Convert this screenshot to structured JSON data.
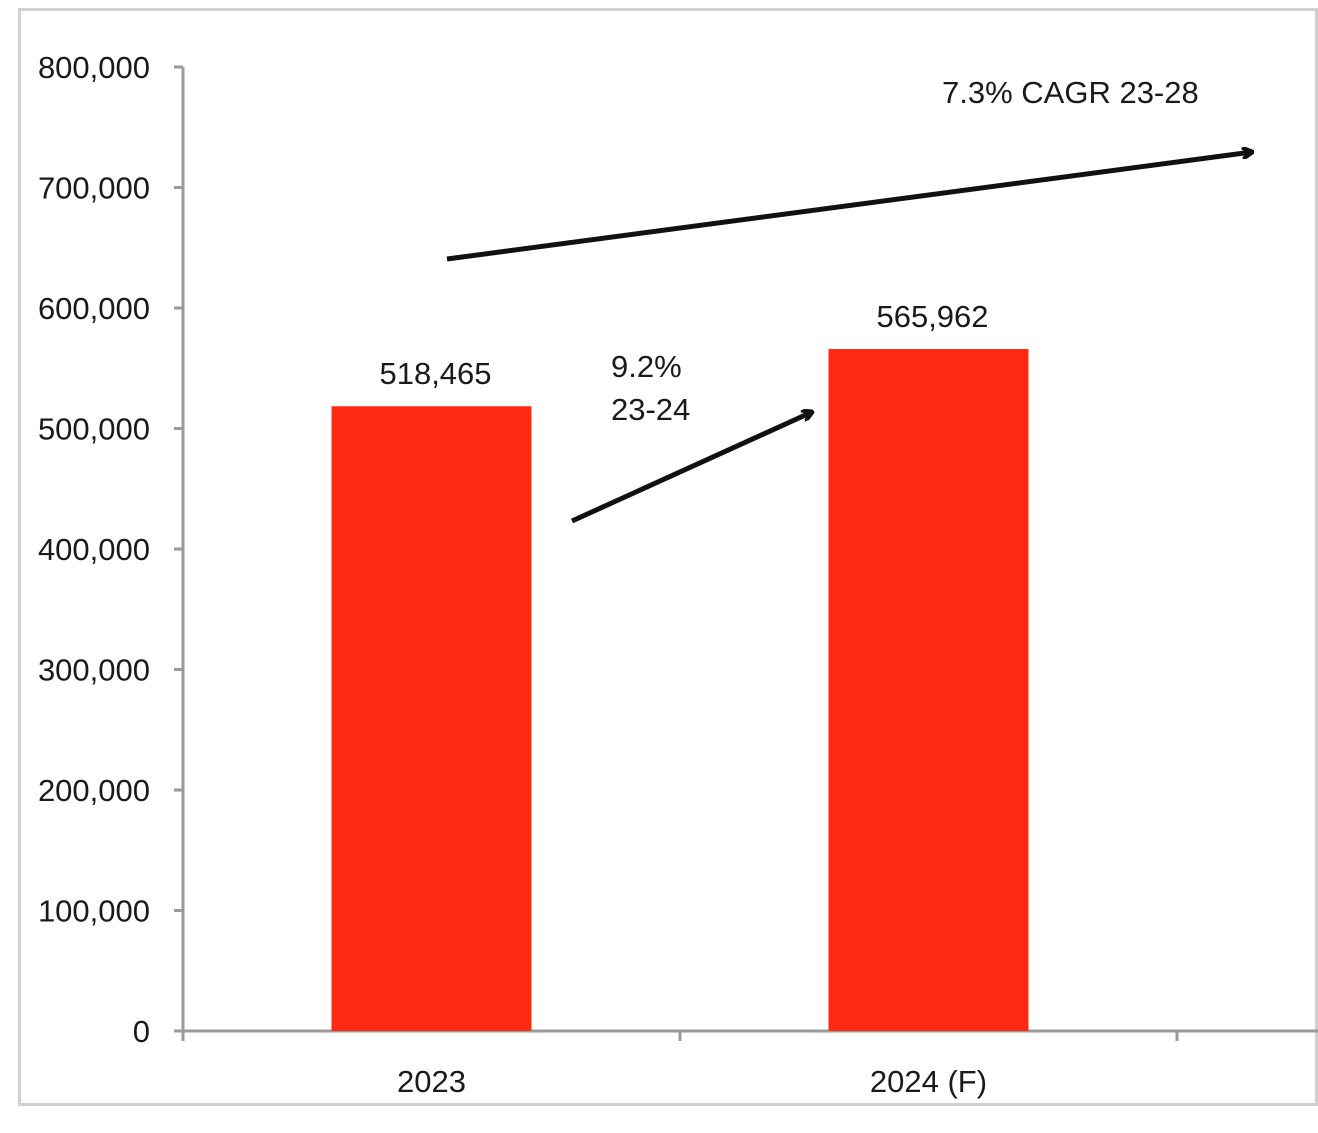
{
  "chart_data": {
    "type": "bar",
    "categories": [
      "2023",
      "2024 (F)"
    ],
    "values": [
      518465,
      565962
    ],
    "data_labels": [
      "518,465",
      "565,962"
    ],
    "ylim": [
      0,
      800000
    ],
    "y_ticks": [
      0,
      100000,
      200000,
      300000,
      400000,
      500000,
      600000,
      700000,
      800000
    ],
    "y_tick_labels": [
      "0",
      "100,000",
      "200,000",
      "300,000",
      "400,000",
      "500,000",
      "600,000",
      "700,000",
      "800,000"
    ],
    "grid": false,
    "legend": "none",
    "bar_color": "#ff2a12",
    "annotations": {
      "short_growth_line1": "9.2%",
      "short_growth_line2": "23-24",
      "cagr": "7.3% CAGR 23-28"
    }
  }
}
